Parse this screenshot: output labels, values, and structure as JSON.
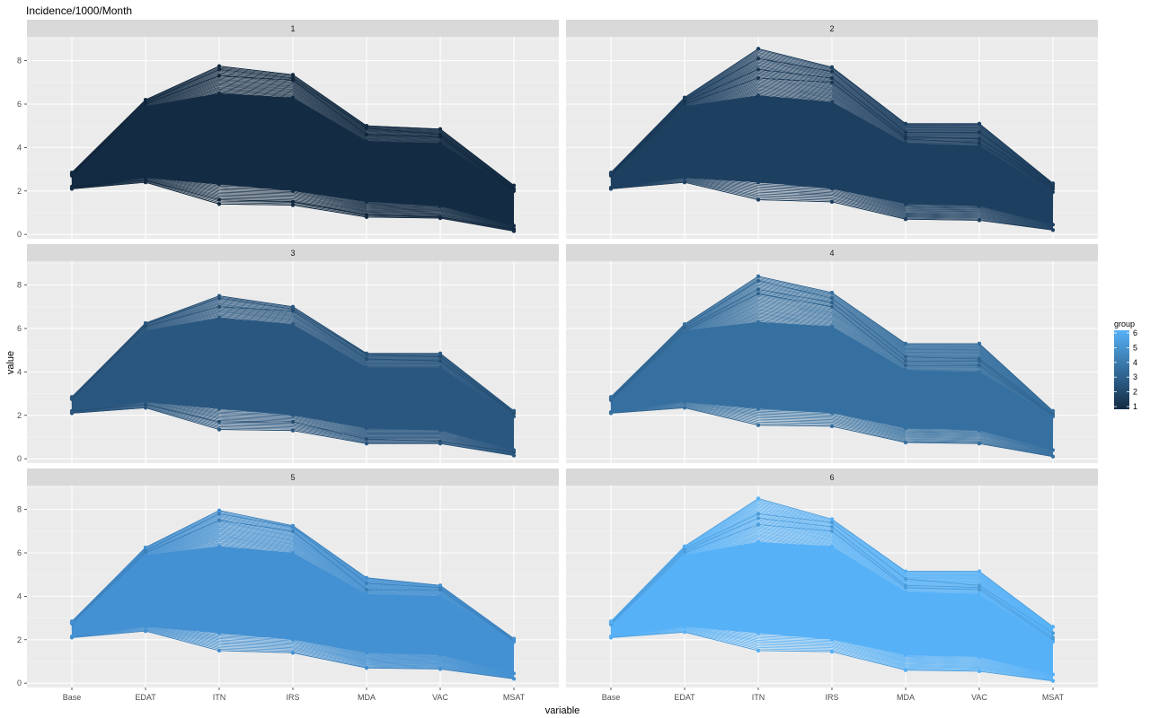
{
  "chart_data": {
    "type": "line",
    "title": "Incidence/1000/Month",
    "xlabel": "variable",
    "ylabel": "value",
    "categories": [
      "Base",
      "EDAT",
      "ITN",
      "IRS",
      "MDA",
      "VAC",
      "MSAT"
    ],
    "y_ticks": [
      0,
      2,
      4,
      6,
      8
    ],
    "ylim": [
      -0.2,
      9.1
    ],
    "grid": true,
    "facet_layout": "3 rows x 2 columns",
    "legend": {
      "title": "group",
      "placement": "right",
      "labels": [
        "6",
        "5",
        "4",
        "3",
        "2",
        "1"
      ],
      "gradient": [
        "#56B1F7",
        "#132B43"
      ]
    },
    "panels": [
      {
        "strip": "1",
        "color": "#132B43",
        "min": [
          2.1,
          2.4,
          1.4,
          1.35,
          0.8,
          0.75,
          0.15
        ],
        "max": [
          2.85,
          6.2,
          7.75,
          7.35,
          5.0,
          4.85,
          2.25
        ],
        "core_low": [
          2.15,
          2.6,
          2.3,
          2.0,
          1.5,
          1.3,
          0.4
        ],
        "core_high": [
          2.8,
          5.9,
          6.5,
          6.3,
          4.3,
          4.2,
          2.0
        ],
        "outliers": [
          [
            2.8,
            6.2,
            7.75,
            7.35,
            5.0,
            4.85,
            2.25
          ],
          [
            2.75,
            6.1,
            7.6,
            7.2,
            4.9,
            4.6,
            2.1
          ],
          [
            2.7,
            6.0,
            7.3,
            7.1,
            4.6,
            4.5,
            2.0
          ],
          [
            2.1,
            2.4,
            1.4,
            1.35,
            0.8,
            0.75,
            0.15
          ],
          [
            2.2,
            2.5,
            1.6,
            1.5,
            0.9,
            0.8,
            0.25
          ]
        ]
      },
      {
        "strip": "2",
        "color": "#1D3F60",
        "min": [
          2.1,
          2.4,
          1.6,
          1.5,
          0.7,
          0.65,
          0.2
        ],
        "max": [
          2.85,
          6.3,
          8.55,
          7.7,
          5.1,
          5.1,
          2.35
        ],
        "core_low": [
          2.15,
          2.6,
          2.4,
          2.1,
          1.4,
          1.3,
          0.45
        ],
        "core_high": [
          2.8,
          5.9,
          6.4,
          6.1,
          4.2,
          4.1,
          1.95
        ],
        "outliers": [
          [
            2.8,
            6.3,
            8.55,
            7.7,
            5.1,
            5.1,
            2.35
          ],
          [
            2.8,
            6.2,
            8.1,
            7.5,
            4.7,
            4.7,
            2.3
          ],
          [
            2.75,
            6.1,
            7.6,
            7.2,
            4.5,
            4.4,
            2.2
          ],
          [
            2.7,
            6.0,
            7.2,
            7.0,
            4.4,
            4.2,
            2.1
          ],
          [
            2.1,
            2.4,
            1.6,
            1.5,
            0.7,
            0.65,
            0.2
          ]
        ]
      },
      {
        "strip": "3",
        "color": "#2A577F",
        "min": [
          2.1,
          2.35,
          1.35,
          1.3,
          0.7,
          0.7,
          0.15
        ],
        "max": [
          2.85,
          6.25,
          7.5,
          7.0,
          4.85,
          4.85,
          2.2
        ],
        "core_low": [
          2.15,
          2.6,
          2.3,
          2.0,
          1.4,
          1.3,
          0.4
        ],
        "core_high": [
          2.8,
          5.9,
          6.5,
          6.2,
          4.2,
          4.2,
          1.95
        ],
        "outliers": [
          [
            2.8,
            6.25,
            7.5,
            7.0,
            4.85,
            4.85,
            2.2
          ],
          [
            2.75,
            6.2,
            7.4,
            6.9,
            4.8,
            4.7,
            2.1
          ],
          [
            2.75,
            6.1,
            7.0,
            6.8,
            4.6,
            4.5,
            2.1
          ],
          [
            2.1,
            2.35,
            1.35,
            1.3,
            0.7,
            0.7,
            0.15
          ],
          [
            2.2,
            2.5,
            1.7,
            1.7,
            0.9,
            0.8,
            0.3
          ]
        ]
      },
      {
        "strip": "4",
        "color": "#3670A0",
        "min": [
          2.1,
          2.35,
          1.55,
          1.5,
          0.75,
          0.7,
          0.1
        ],
        "max": [
          2.85,
          6.2,
          8.4,
          7.65,
          5.3,
          5.3,
          2.2
        ],
        "core_low": [
          2.15,
          2.6,
          2.3,
          2.1,
          1.4,
          1.3,
          0.4
        ],
        "core_high": [
          2.8,
          5.9,
          6.3,
          6.1,
          4.1,
          4.0,
          1.95
        ],
        "outliers": [
          [
            2.8,
            6.2,
            8.4,
            7.65,
            5.3,
            5.3,
            2.2
          ],
          [
            2.8,
            6.1,
            8.2,
            7.4,
            4.7,
            4.6,
            2.1
          ],
          [
            2.75,
            6.0,
            7.8,
            7.2,
            4.5,
            4.5,
            2.0
          ],
          [
            2.7,
            5.9,
            7.6,
            7.0,
            4.3,
            4.3,
            2.0
          ],
          [
            2.1,
            2.35,
            1.55,
            1.5,
            0.75,
            0.7,
            0.1
          ]
        ]
      },
      {
        "strip": "5",
        "color": "#4390D2",
        "min": [
          2.1,
          2.4,
          1.5,
          1.4,
          0.7,
          0.65,
          0.2
        ],
        "max": [
          2.85,
          6.25,
          7.95,
          7.25,
          4.85,
          4.5,
          2.05
        ],
        "core_low": [
          2.15,
          2.6,
          2.3,
          2.0,
          1.4,
          1.3,
          0.45
        ],
        "core_high": [
          2.8,
          5.9,
          6.3,
          6.0,
          4.1,
          4.0,
          1.9
        ],
        "outliers": [
          [
            2.8,
            6.25,
            7.95,
            7.25,
            4.85,
            4.5,
            2.05
          ],
          [
            2.8,
            6.1,
            7.8,
            7.2,
            4.6,
            4.4,
            2.0
          ],
          [
            2.75,
            6.0,
            7.5,
            7.0,
            4.3,
            4.3,
            1.95
          ],
          [
            2.1,
            2.4,
            1.5,
            1.4,
            0.7,
            0.65,
            0.2
          ]
        ]
      },
      {
        "strip": "6",
        "color": "#56B1F7",
        "min": [
          2.1,
          2.35,
          1.5,
          1.45,
          0.6,
          0.55,
          0.1
        ],
        "max": [
          2.85,
          6.3,
          8.5,
          7.55,
          5.15,
          5.15,
          2.6
        ],
        "core_low": [
          2.15,
          2.6,
          2.3,
          2.0,
          1.3,
          1.2,
          0.4
        ],
        "core_high": [
          2.8,
          5.9,
          6.5,
          6.3,
          4.2,
          4.1,
          1.9
        ],
        "outliers": [
          [
            2.8,
            6.3,
            8.5,
            7.55,
            5.15,
            5.15,
            2.6
          ],
          [
            2.8,
            6.2,
            7.8,
            7.4,
            4.8,
            4.5,
            2.3
          ],
          [
            2.75,
            6.1,
            7.6,
            7.2,
            4.5,
            4.4,
            2.1
          ],
          [
            2.7,
            6.0,
            7.3,
            7.0,
            4.4,
            4.3,
            2.0
          ],
          [
            2.1,
            2.35,
            1.5,
            1.45,
            0.6,
            0.55,
            0.1
          ]
        ]
      }
    ]
  }
}
